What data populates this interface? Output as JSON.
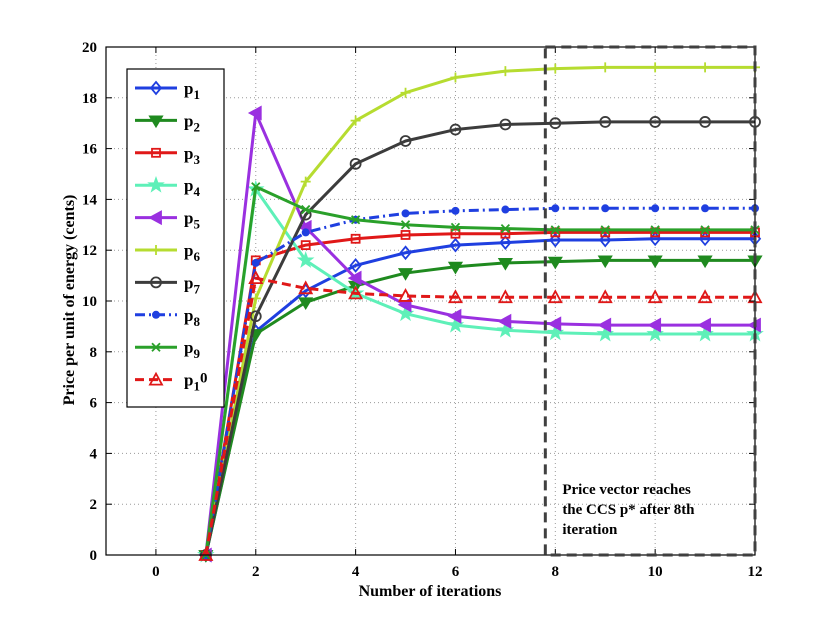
{
  "chart_data": {
    "type": "line",
    "title": "",
    "xlabel": "Number of iterations",
    "ylabel": "Price per unit of energy (cents)",
    "xlim": [
      -1,
      12
    ],
    "ylim": [
      0,
      20
    ],
    "xticks": [
      0,
      2,
      4,
      6,
      8,
      10,
      12
    ],
    "yticks": [
      0,
      2,
      4,
      6,
      8,
      10,
      12,
      14,
      16,
      18,
      20
    ],
    "grid": true,
    "legend_position": "top-left",
    "x": [
      1,
      2,
      3,
      4,
      5,
      6,
      7,
      8,
      9,
      10,
      11,
      12
    ],
    "series": [
      {
        "name": "p",
        "sub": "1",
        "color": "#1f3fe0",
        "line": "solid",
        "marker": "diamond",
        "values": [
          0,
          8.8,
          10.4,
          11.4,
          11.9,
          12.2,
          12.3,
          12.4,
          12.4,
          12.45,
          12.45,
          12.45
        ]
      },
      {
        "name": "p",
        "sub": "2",
        "color": "#1f8a1f",
        "line": "solid",
        "marker": "triangle-down",
        "values": [
          0,
          8.7,
          9.95,
          10.6,
          11.1,
          11.35,
          11.5,
          11.55,
          11.6,
          11.6,
          11.6,
          11.6
        ]
      },
      {
        "name": "p",
        "sub": "3",
        "color": "#e01818",
        "line": "solid",
        "marker": "square",
        "values": [
          0,
          11.6,
          12.2,
          12.45,
          12.6,
          12.65,
          12.65,
          12.7,
          12.7,
          12.7,
          12.7,
          12.7
        ]
      },
      {
        "name": "p",
        "sub": "4",
        "color": "#5ef0b8",
        "line": "solid",
        "marker": "star",
        "values": [
          0,
          14.4,
          11.6,
          10.3,
          9.5,
          9.05,
          8.85,
          8.75,
          8.7,
          8.7,
          8.7,
          8.7
        ]
      },
      {
        "name": "p",
        "sub": "5",
        "color": "#9a30e0",
        "line": "solid",
        "marker": "triangle-left",
        "values": [
          0,
          17.4,
          12.9,
          10.9,
          9.85,
          9.4,
          9.2,
          9.1,
          9.05,
          9.05,
          9.05,
          9.05
        ]
      },
      {
        "name": "p",
        "sub": "6",
        "color": "#b6dc30",
        "line": "solid",
        "marker": "plus",
        "values": [
          0,
          10.1,
          14.7,
          17.1,
          18.2,
          18.8,
          19.05,
          19.15,
          19.2,
          19.2,
          19.2,
          19.2
        ]
      },
      {
        "name": "p",
        "sub": "7",
        "color": "#3c3c3c",
        "line": "solid",
        "marker": "circle",
        "values": [
          0,
          9.4,
          13.4,
          15.4,
          16.3,
          16.75,
          16.95,
          17.0,
          17.05,
          17.05,
          17.05,
          17.05
        ]
      },
      {
        "name": "p",
        "sub": "8",
        "color": "#1f3fe0",
        "line": "dashdot",
        "marker": "dot",
        "values": [
          0,
          11.5,
          12.7,
          13.2,
          13.45,
          13.55,
          13.6,
          13.65,
          13.65,
          13.65,
          13.65,
          13.65
        ]
      },
      {
        "name": "p",
        "sub": "9",
        "color": "#2aa02a",
        "line": "solid",
        "marker": "x",
        "values": [
          0,
          14.5,
          13.6,
          13.2,
          13.0,
          12.9,
          12.85,
          12.8,
          12.8,
          12.8,
          12.8,
          12.8
        ]
      },
      {
        "name": "p",
        "sub": "1",
        "sup_suffix": "0",
        "color": "#e01818",
        "line": "dashed",
        "marker": "triangle-up",
        "values": [
          0,
          10.9,
          10.5,
          10.3,
          10.2,
          10.15,
          10.15,
          10.15,
          10.15,
          10.15,
          10.15,
          10.15
        ]
      }
    ],
    "annotation": {
      "lines": [
        "Price vector reaches",
        "the CCS p* after 8th",
        "iteration"
      ],
      "box_x_range": [
        7.8,
        12
      ],
      "box_y_range": [
        0,
        20
      ]
    }
  }
}
